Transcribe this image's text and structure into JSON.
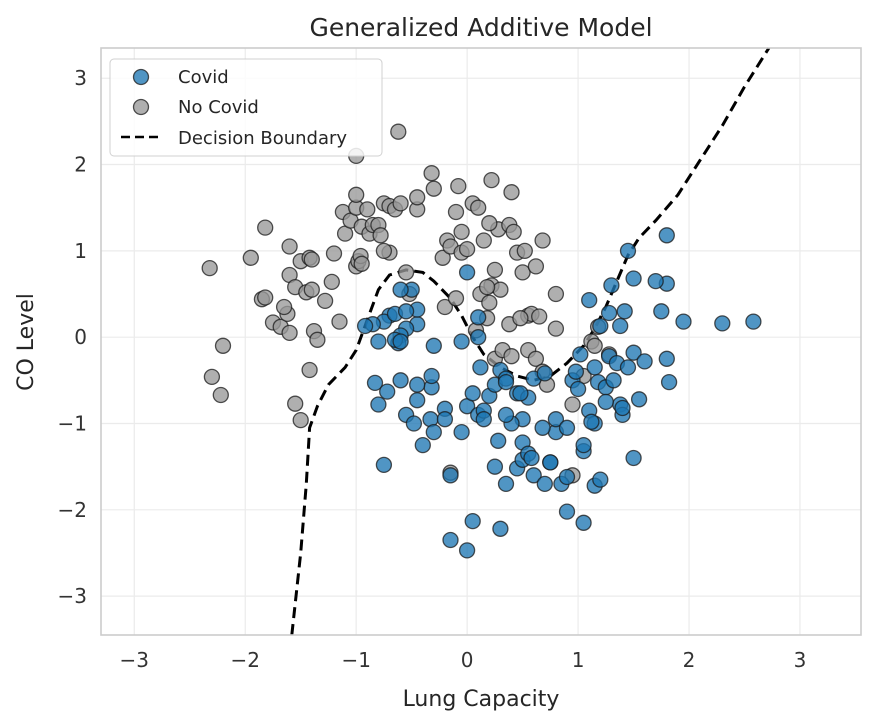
{
  "chart_data": {
    "type": "scatter",
    "title": "Generalized Additive Model",
    "xlabel": "Lung Capacity",
    "ylabel": "CO Level",
    "xlim": [
      -3.3,
      3.55
    ],
    "ylim": [
      -3.45,
      3.35
    ],
    "xticks": [
      -3,
      -2,
      -1,
      0,
      1,
      2,
      3
    ],
    "yticks": [
      -3,
      -2,
      -1,
      0,
      1,
      2,
      3
    ],
    "xtick_labels": [
      "−3",
      "−2",
      "−1",
      "0",
      "1",
      "2",
      "3"
    ],
    "ytick_labels": [
      "−3",
      "−2",
      "−1",
      "0",
      "1",
      "2",
      "3"
    ],
    "grid": true,
    "legend_position": "top-left",
    "series": [
      {
        "name": "Covid",
        "kind": "points",
        "color": "#1f77b4",
        "points": [
          [
            -0.75,
            -1.48
          ],
          [
            -0.8,
            -0.78
          ],
          [
            -0.83,
            -0.53
          ],
          [
            -0.72,
            -0.63
          ],
          [
            -0.6,
            -0.5
          ],
          [
            -0.55,
            -0.9
          ],
          [
            -0.48,
            -1.0
          ],
          [
            -0.45,
            -0.73
          ],
          [
            -0.4,
            -1.25
          ],
          [
            -0.33,
            -0.95
          ],
          [
            -0.3,
            -1.1
          ],
          [
            -0.32,
            -0.58
          ],
          [
            -0.2,
            -0.83
          ],
          [
            -0.2,
            -0.95
          ],
          [
            -0.05,
            -1.1
          ],
          [
            0.0,
            -0.8
          ],
          [
            0.05,
            -0.65
          ],
          [
            0.1,
            -0.9
          ],
          [
            0.15,
            -0.85
          ],
          [
            0.2,
            -0.68
          ],
          [
            0.25,
            -0.55
          ],
          [
            0.3,
            -0.38
          ],
          [
            0.35,
            -0.48
          ],
          [
            0.28,
            -1.2
          ],
          [
            0.25,
            -1.5
          ],
          [
            0.35,
            -1.7
          ],
          [
            0.45,
            -1.52
          ],
          [
            0.5,
            -1.42
          ],
          [
            0.5,
            -1.22
          ],
          [
            0.55,
            -1.35
          ],
          [
            0.6,
            -1.6
          ],
          [
            0.7,
            -1.7
          ],
          [
            0.75,
            -1.45
          ],
          [
            0.85,
            -1.7
          ],
          [
            0.8,
            -1.1
          ],
          [
            0.8,
            -0.95
          ],
          [
            0.9,
            -1.05
          ],
          [
            0.9,
            -2.02
          ],
          [
            1.05,
            -2.15
          ],
          [
            1.05,
            -1.32
          ],
          [
            1.05,
            -1.25
          ],
          [
            1.1,
            -0.85
          ],
          [
            1.15,
            -1.0
          ],
          [
            1.15,
            -1.72
          ],
          [
            1.2,
            -1.65
          ],
          [
            1.15,
            -0.35
          ],
          [
            1.18,
            -0.52
          ],
          [
            1.25,
            -0.58
          ],
          [
            1.28,
            -0.22
          ],
          [
            1.35,
            -0.3
          ],
          [
            1.38,
            -0.78
          ],
          [
            1.4,
            -0.9
          ],
          [
            1.45,
            -0.35
          ],
          [
            1.5,
            -0.18
          ],
          [
            1.5,
            -1.4
          ],
          [
            1.55,
            -0.72
          ],
          [
            1.6,
            -0.28
          ],
          [
            1.8,
            -0.25
          ],
          [
            1.82,
            -0.52
          ],
          [
            1.95,
            0.18
          ],
          [
            2.3,
            0.16
          ],
          [
            2.58,
            0.18
          ],
          [
            1.75,
            0.3
          ],
          [
            1.8,
            0.62
          ],
          [
            1.7,
            0.65
          ],
          [
            1.8,
            1.18
          ],
          [
            1.5,
            0.68
          ],
          [
            1.45,
            1.0
          ],
          [
            1.42,
            0.3
          ],
          [
            1.3,
            0.6
          ],
          [
            1.28,
            0.28
          ],
          [
            1.2,
            0.13
          ],
          [
            1.1,
            0.43
          ],
          [
            0.0,
            0.75
          ],
          [
            0.1,
            0.23
          ],
          [
            0.1,
            0.0
          ],
          [
            -0.05,
            -0.05
          ],
          [
            -0.3,
            -0.1
          ],
          [
            -0.45,
            0.15
          ],
          [
            -0.45,
            0.32
          ],
          [
            -0.5,
            0.55
          ],
          [
            -0.55,
            0.1
          ],
          [
            -0.6,
            0.02
          ],
          [
            -0.62,
            -0.07
          ],
          [
            -0.65,
            -0.03
          ],
          [
            -0.7,
            0.25
          ],
          [
            -0.75,
            0.18
          ],
          [
            -0.8,
            -0.05
          ],
          [
            -0.85,
            0.15
          ],
          [
            -0.92,
            0.13
          ],
          [
            -0.65,
            0.27
          ],
          [
            0.35,
            -0.52
          ],
          [
            0.45,
            -0.65
          ],
          [
            0.55,
            -0.7
          ],
          [
            0.6,
            -0.48
          ],
          [
            0.5,
            -0.95
          ],
          [
            0.4,
            -1.0
          ],
          [
            0.05,
            -2.13
          ],
          [
            0.3,
            -2.22
          ],
          [
            -0.15,
            -2.35
          ],
          [
            -0.0,
            -2.47
          ],
          [
            0.68,
            -1.05
          ],
          [
            0.12,
            -0.35
          ],
          [
            -0.6,
            0.55
          ],
          [
            -0.15,
            -1.6
          ],
          [
            0.95,
            -0.5
          ],
          [
            1.02,
            -0.2
          ],
          [
            0.7,
            -0.42
          ],
          [
            1.38,
            0.13
          ],
          [
            1.4,
            -0.82
          ],
          [
            1.32,
            -0.5
          ],
          [
            1.25,
            -0.75
          ],
          [
            0.98,
            -0.4
          ],
          [
            1.0,
            -0.6
          ],
          [
            0.58,
            -1.4
          ],
          [
            0.75,
            -1.45
          ],
          [
            1.12,
            -0.98
          ],
          [
            0.15,
            -0.95
          ],
          [
            0.35,
            -0.9
          ],
          [
            0.48,
            -0.65
          ],
          [
            0.9,
            -1.62
          ],
          [
            -0.32,
            -0.45
          ],
          [
            -0.45,
            -0.55
          ],
          [
            -0.6,
            -0.05
          ],
          [
            -0.55,
            0.3
          ]
        ]
      },
      {
        "name": "No Covid",
        "kind": "points",
        "color": "#999999",
        "points": [
          [
            -2.32,
            0.8
          ],
          [
            -1.95,
            0.92
          ],
          [
            -2.3,
            -0.46
          ],
          [
            -2.2,
            -0.1
          ],
          [
            -2.22,
            -0.67
          ],
          [
            -1.82,
            1.27
          ],
          [
            -1.85,
            0.44
          ],
          [
            -1.82,
            0.46
          ],
          [
            -1.75,
            0.17
          ],
          [
            -1.68,
            0.12
          ],
          [
            -1.62,
            0.27
          ],
          [
            -1.6,
            0.05
          ],
          [
            -1.65,
            0.35
          ],
          [
            -1.6,
            1.05
          ],
          [
            -1.6,
            0.72
          ],
          [
            -1.55,
            0.58
          ],
          [
            -1.5,
            0.88
          ],
          [
            -1.45,
            0.52
          ],
          [
            -1.42,
            0.92
          ],
          [
            -1.4,
            0.9
          ],
          [
            -1.4,
            0.55
          ],
          [
            -1.38,
            0.07
          ],
          [
            -1.35,
            -0.03
          ],
          [
            -1.42,
            -0.38
          ],
          [
            -1.55,
            -0.77
          ],
          [
            -1.5,
            -0.96
          ],
          [
            -1.28,
            0.42
          ],
          [
            -1.22,
            0.64
          ],
          [
            -1.2,
            0.97
          ],
          [
            -1.15,
            0.18
          ],
          [
            -1.12,
            1.45
          ],
          [
            -1.1,
            1.2
          ],
          [
            -1.05,
            1.35
          ],
          [
            -1.0,
            1.5
          ],
          [
            -1.0,
            1.65
          ],
          [
            -1.0,
            0.82
          ],
          [
            -0.98,
            0.88
          ],
          [
            -0.96,
            0.94
          ],
          [
            -0.95,
            1.28
          ],
          [
            -0.9,
            1.48
          ],
          [
            -0.88,
            1.2
          ],
          [
            -0.85,
            1.3
          ],
          [
            -0.8,
            1.3
          ],
          [
            -0.78,
            1.18
          ],
          [
            -0.75,
            1.55
          ],
          [
            -0.7,
            1.52
          ],
          [
            -0.7,
            0.98
          ],
          [
            -0.65,
            1.48
          ],
          [
            -0.6,
            1.55
          ],
          [
            -0.55,
            0.75
          ],
          [
            -0.52,
            0.5
          ],
          [
            -0.45,
            1.48
          ],
          [
            -0.45,
            1.62
          ],
          [
            -0.32,
            1.9
          ],
          [
            -0.3,
            1.72
          ],
          [
            -0.22,
            0.92
          ],
          [
            -0.2,
            0.35
          ],
          [
            -0.18,
            1.12
          ],
          [
            -0.15,
            1.05
          ],
          [
            -0.08,
            1.75
          ],
          [
            -0.1,
            1.45
          ],
          [
            -0.05,
            0.98
          ],
          [
            -0.05,
            1.22
          ],
          [
            0.0,
            1.02
          ],
          [
            0.05,
            1.55
          ],
          [
            0.1,
            1.5
          ],
          [
            0.12,
            0.5
          ],
          [
            0.15,
            1.12
          ],
          [
            0.18,
            0.22
          ],
          [
            0.2,
            0.4
          ],
          [
            0.22,
            0.6
          ],
          [
            0.22,
            1.82
          ],
          [
            0.25,
            0.78
          ],
          [
            0.28,
            1.25
          ],
          [
            0.3,
            0.55
          ],
          [
            0.38,
            1.3
          ],
          [
            0.4,
            1.68
          ],
          [
            0.42,
            1.22
          ],
          [
            0.45,
            0.98
          ],
          [
            0.5,
            0.75
          ],
          [
            0.52,
            1.0
          ],
          [
            0.55,
            0.25
          ],
          [
            0.58,
            0.27
          ],
          [
            0.62,
            0.82
          ],
          [
            0.65,
            0.24
          ],
          [
            0.68,
            1.12
          ],
          [
            0.8,
            0.5
          ],
          [
            0.8,
            0.1
          ],
          [
            0.95,
            -0.78
          ],
          [
            0.95,
            -1.6
          ],
          [
            1.12,
            -0.05
          ],
          [
            1.15,
            -0.1
          ],
          [
            1.18,
            0.12
          ],
          [
            1.28,
            -0.2
          ],
          [
            0.55,
            -0.15
          ],
          [
            0.25,
            -0.25
          ],
          [
            0.32,
            -0.15
          ],
          [
            0.4,
            -0.22
          ],
          [
            0.62,
            -0.25
          ],
          [
            0.68,
            -0.4
          ],
          [
            0.72,
            -0.55
          ],
          [
            -0.15,
            -1.57
          ],
          [
            -0.62,
            2.38
          ],
          [
            -1.0,
            2.1
          ],
          [
            -0.75,
            1.0
          ],
          [
            -0.95,
            0.85
          ],
          [
            0.18,
            0.58
          ],
          [
            0.38,
            0.15
          ],
          [
            0.08,
            0.08
          ],
          [
            -0.1,
            0.45
          ],
          [
            0.2,
            1.32
          ],
          [
            0.48,
            0.22
          ],
          [
            1.05,
            -0.45
          ]
        ]
      },
      {
        "name": "Decision Boundary",
        "kind": "line",
        "color": "#000000",
        "style": "dashed",
        "points": [
          [
            -1.58,
            -3.45
          ],
          [
            -1.5,
            -2.5
          ],
          [
            -1.45,
            -1.7
          ],
          [
            -1.42,
            -1.05
          ],
          [
            -1.35,
            -0.8
          ],
          [
            -1.25,
            -0.55
          ],
          [
            -1.1,
            -0.35
          ],
          [
            -1.0,
            -0.15
          ],
          [
            -0.9,
            0.2
          ],
          [
            -0.8,
            0.55
          ],
          [
            -0.7,
            0.72
          ],
          [
            -0.55,
            0.78
          ],
          [
            -0.4,
            0.75
          ],
          [
            -0.3,
            0.65
          ],
          [
            -0.15,
            0.45
          ],
          [
            -0.05,
            0.25
          ],
          [
            0.05,
            0.0
          ],
          [
            0.15,
            -0.2
          ],
          [
            0.3,
            -0.35
          ],
          [
            0.45,
            -0.45
          ],
          [
            0.6,
            -0.5
          ],
          [
            0.75,
            -0.45
          ],
          [
            0.9,
            -0.3
          ],
          [
            1.05,
            -0.1
          ],
          [
            1.15,
            0.1
          ],
          [
            1.25,
            0.35
          ],
          [
            1.35,
            0.65
          ],
          [
            1.45,
            0.95
          ],
          [
            1.55,
            1.15
          ],
          [
            1.7,
            1.35
          ],
          [
            1.9,
            1.65
          ],
          [
            2.1,
            2.05
          ],
          [
            2.3,
            2.45
          ],
          [
            2.5,
            2.9
          ],
          [
            2.72,
            3.35
          ]
        ]
      }
    ]
  }
}
